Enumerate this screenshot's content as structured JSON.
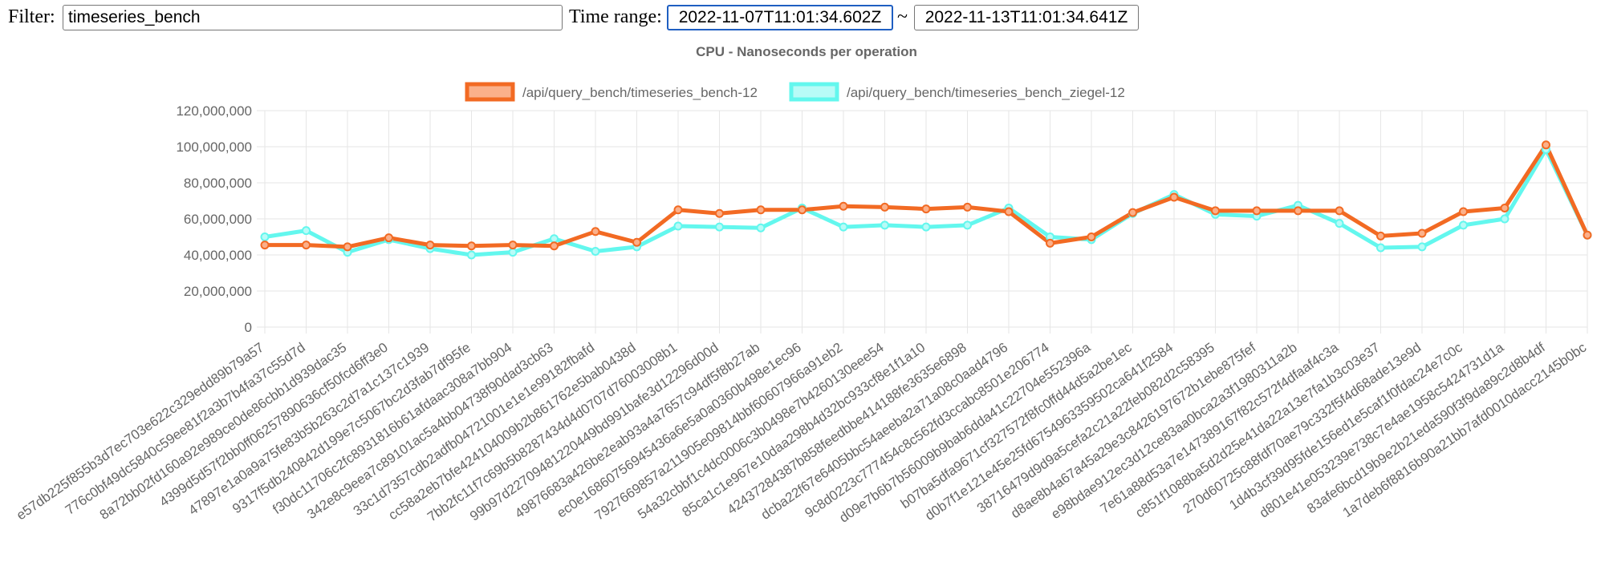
{
  "filter": {
    "label": "Filter:",
    "value": "timeseries_bench"
  },
  "time_range": {
    "label": "Time range:",
    "start": "2022-11-07T11:01:34.602Z",
    "separator": "~",
    "end": "2022-11-13T11:01:34.641Z"
  },
  "colors": {
    "series1": "#f26a23",
    "series1_fill": "#fbb08a",
    "series2": "#63f7ee",
    "series2_fill": "#b8fbf7",
    "grid": "#e6e6e6",
    "text": "#666666"
  },
  "chart_data": {
    "type": "line",
    "title": "CPU - Nanoseconds per operation",
    "legend_position": "top",
    "grid": true,
    "ylim": [
      0,
      120000000
    ],
    "yticks": [
      "0",
      "20,000,000",
      "40,000,000",
      "60,000,000",
      "80,000,000",
      "100,000,000",
      "120,000,000"
    ],
    "categories": [
      "e57db225f855b3d7ec703e622c329edd89b79a57",
      "776c0bf49dc5840c59ee81f2a3b7b4fa37c55d7d",
      "8a72bb02fd160a92e989ce0de86cbb1d939dac35",
      "4399d5d57f2bb0ff06257890636cf50fcd6ff3e0",
      "47897e1a0a9a75fe83b5b263c2d7a1c137c1939",
      "9317f5db240842d199e7c5067bc2d3fab7df95fe",
      "f30dc11706c2fc8931816b61afdaac308a7bb904",
      "342e8c9eea7c89101ac5a4bb04738f90dad3cb63",
      "33c1d7357cdb2adfb04721001e1e1e99182fbafd",
      "cc58a2eb7bfe424104009b2b861762e5bab0438d",
      "7bb2fc11f7c69b5b8287434d4d0707d76003008b1",
      "99b97d22709481220449bd991bafe3d12296d00d",
      "49876683a426be2eab93a4a7657c94df5f8b27ab",
      "ec0e16860756945436a6e5a0a0360b498e1ec96",
      "7927669857a211905e09814bbf60607966a91eb2",
      "54a32cbbf1c4dc0006c3b0498e7b4260130eee54",
      "85ca1c1e967e10daa298b4d32bc933cf8e1f1a10",
      "42437284387b858feedbbe414188fe3635e6898",
      "dcba22f67e6405bbc54aeeba2a71a08c0aad4796",
      "9c8d0223c777454c8c562fd3ccabc8501e206774",
      "d09e7b6b7b56009b9bab6dda41c22704e552396a",
      "b07ba5dfa9671cf327572f8fc0ffd44d5a2be1ec",
      "d0b7f1e121e45e25fd6754963359502ca641f2584",
      "38716479d9d9a5cefa2c21a22feb082d2c58395",
      "d8ae8b4a67a45a29e3c8426197672b1ebe875fef",
      "e98bdae912ec3d12ce83aa0bca2a3f1980311a2b",
      "7e61a88d53a7e147389167f82c572f4dfaaf4c3a",
      "c851f1088ba5d2d25e41da22a13e7fa1b3c03e37",
      "270d60725c88fdf70ae79c332f5f4d68ade13e9d",
      "1d4b3cf39d95fde156ed1e5caf1f0fdac24e7c0c",
      "d801e41e053239e738c7e4ae1958c5424731d1a",
      "83afe6bcd19b9e2b21eda590f3f9da89c2d8b4df",
      "1a7deb6f8816b90a21bb7afd0010dacc2145b0bc"
    ],
    "series": [
      {
        "name": "/api/query_bench/timeseries_bench-12",
        "values": [
          45500000,
          45500000,
          44500000,
          49500000,
          45500000,
          45000000,
          45500000,
          45000000,
          53000000,
          47000000,
          65000000,
          63000000,
          65000000,
          65000000,
          67000000,
          66500000,
          65500000,
          66500000,
          64000000,
          46500000,
          50000000,
          63500000,
          72000000,
          64500000,
          64500000,
          64500000,
          64500000,
          50500000,
          52000000,
          64000000,
          66000000,
          101000000,
          51000000
        ]
      },
      {
        "name": "/api/query_bench/timeseries_bench_ziegel-12",
        "values": [
          50000000,
          53500000,
          41500000,
          48500000,
          43500000,
          40000000,
          41500000,
          49000000,
          42000000,
          44500000,
          56000000,
          55500000,
          55000000,
          66000000,
          55500000,
          56500000,
          55500000,
          56500000,
          66000000,
          50000000,
          48500000,
          63000000,
          73500000,
          62500000,
          61500000,
          67500000,
          57500000,
          44000000,
          44500000,
          56500000,
          60000000,
          98500000,
          51000000
        ]
      }
    ]
  }
}
